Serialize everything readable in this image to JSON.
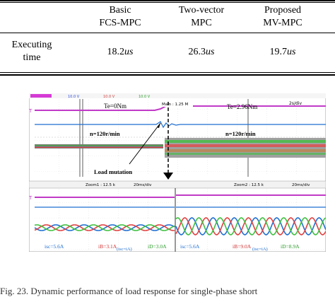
{
  "table": {
    "columns": [
      "",
      "Basic FCS-MPC",
      "Two-vector MPC",
      "Proposed MV-MPC"
    ],
    "header": [
      {
        "line1": "Basic",
        "line2": "FCS-MPC"
      },
      {
        "line1": "Two-vector",
        "line2": "MPC"
      },
      {
        "line1": "Proposed",
        "line2": "MV-MPC"
      }
    ],
    "row_label": {
      "line1": "Executing",
      "line2": "time"
    },
    "values": [
      {
        "num": "18.2",
        "unit": "us"
      },
      {
        "num": "26.3",
        "unit": "us"
      },
      {
        "num": "19.7",
        "unit": "us"
      }
    ]
  },
  "scope": {
    "top_bar": [
      "10.0 V",
      "10.0 V",
      "10.0 V"
    ],
    "te_left": "Te=0Nm",
    "te_right": "Te=2.96Nm",
    "main_label": "Main : 1.25 M",
    "timebase_top": "2s/div",
    "speed_left": "n=120r/min",
    "speed_right": "n=120r/min",
    "load_mutation": "Load mutation",
    "zoom1": "Zoom1 : 12.5 k",
    "zoom1_div": "20ms/div",
    "zoom2": "Zoom2 : 12.5 k",
    "zoom2_div": "20ms/div",
    "left_labels": [
      "isc=5.6A",
      "iB=3.1A",
      "iD=3.0A",
      "(isc=iA)"
    ],
    "right_labels": [
      "isc=5.6A",
      "iB=9.0A",
      "iD=8.9A",
      "(isc=iA)"
    ]
  },
  "caption": "Fig. 23.    Dynamic performance of load response for single-phase short"
}
